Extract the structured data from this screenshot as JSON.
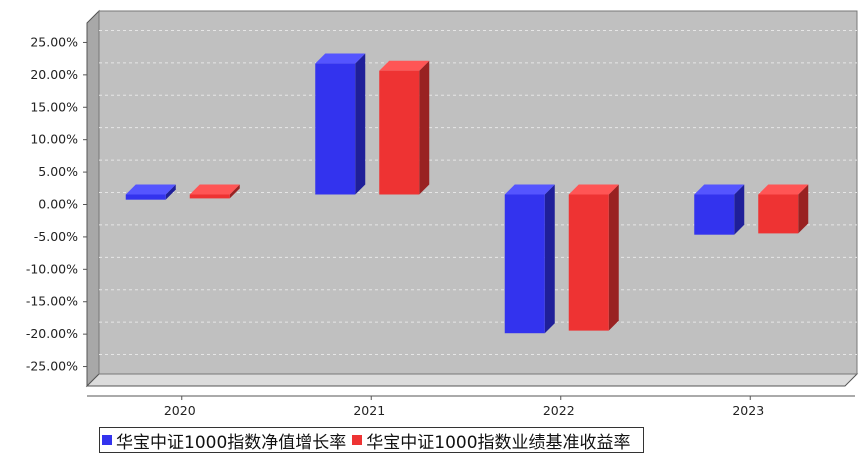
{
  "chart_data": {
    "type": "bar",
    "categories": [
      "2020",
      "2021",
      "2022",
      "2023"
    ],
    "series": [
      {
        "name": "华宝中证1000指数净值增长率",
        "values": [
          -0.8,
          20.2,
          -21.4,
          -6.2
        ]
      },
      {
        "name": "华宝中证1000指数业绩基准收益率",
        "values": [
          -0.6,
          19.1,
          -21.0,
          -6.0
        ]
      }
    ],
    "ylim": [
      -28,
      28
    ],
    "yticks": [
      25,
      20,
      15,
      10,
      5,
      0,
      -5,
      -10,
      -15,
      -20,
      -25
    ],
    "ytick_labels": [
      "25.00%",
      "20.00%",
      "15.00%",
      "10.00%",
      "5.00%",
      "0.00%",
      "-5.00%",
      "-10.00%",
      "-15.00%",
      "-20.00%",
      "-25.00%"
    ],
    "grid": true,
    "legend_position": "bottom",
    "colors": {
      "series": [
        "#3333ee",
        "#ee3333"
      ],
      "series_dark": [
        "#1f1f99",
        "#992222"
      ],
      "series_light": [
        "#5555ff",
        "#ff5555"
      ],
      "plot_background": "#c0c0c0",
      "wall_shade": "#a8a8a8",
      "gridline": "#e6e6e6"
    }
  }
}
